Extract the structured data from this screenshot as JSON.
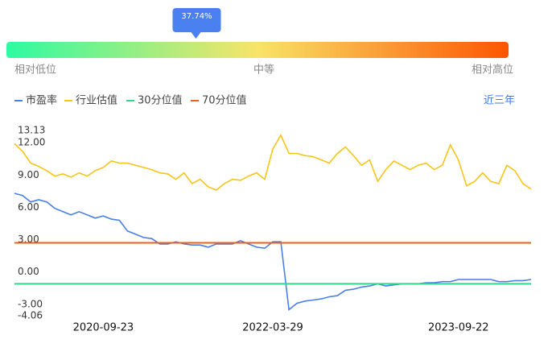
{
  "chart_data": [
    {
      "type": "gauge",
      "value": 37.74,
      "label": "37.74%",
      "low_label": "相对低位",
      "mid_label": "中等",
      "high_label": "相对高位",
      "colors": [
        "#2efaa2",
        "#f8e468",
        "#fd5502"
      ]
    },
    {
      "type": "line",
      "period_label": "近三年",
      "categories": [
        null,
        null,
        null,
        null,
        null,
        null,
        null,
        null,
        null,
        null,
        null,
        "2020-09-23",
        null,
        null,
        null,
        null,
        null,
        null,
        null,
        null,
        null,
        null,
        null,
        null,
        null,
        null,
        null,
        null,
        null,
        null,
        null,
        null,
        "2022-03-29",
        null,
        null,
        null,
        null,
        null,
        null,
        null,
        null,
        null,
        null,
        null,
        null,
        null,
        null,
        null,
        null,
        null,
        null,
        null,
        null,
        null,
        null,
        "2023-09-22",
        null,
        null,
        null,
        null,
        null,
        null,
        null,
        null,
        null
      ],
      "series": [
        {
          "name": "市盈率",
          "color": "#4a7fe8",
          "values": [
            7.3,
            7.1,
            6.5,
            6.7,
            6.5,
            5.9,
            5.6,
            5.3,
            5.6,
            5.3,
            5.0,
            5.2,
            4.9,
            4.8,
            3.8,
            3.5,
            3.2,
            3.1,
            2.6,
            2.6,
            2.8,
            2.6,
            2.5,
            2.5,
            2.3,
            2.6,
            2.6,
            2.6,
            2.9,
            2.6,
            2.3,
            2.2,
            2.8,
            2.8,
            -3.5,
            -2.9,
            -2.7,
            -2.6,
            -2.5,
            -2.3,
            -2.2,
            -1.7,
            -1.6,
            -1.4,
            -1.3,
            -1.1,
            -1.3,
            -1.2,
            -1.1,
            -1.1,
            -1.1,
            -1.0,
            -1.0,
            -0.9,
            -0.9,
            -0.7,
            -0.7,
            -0.7,
            -0.7,
            -0.7,
            -0.9,
            -0.9,
            -0.8,
            -0.8,
            -0.7
          ]
        },
        {
          "name": "行业估值",
          "color": "#f5c518",
          "values": [
            11.9,
            11.2,
            10.1,
            9.8,
            9.4,
            8.9,
            9.1,
            8.8,
            9.2,
            8.9,
            9.4,
            9.7,
            10.3,
            10.1,
            10.1,
            9.9,
            9.7,
            9.5,
            9.2,
            9.1,
            8.6,
            9.2,
            8.2,
            8.6,
            7.9,
            7.6,
            8.2,
            8.6,
            8.5,
            8.9,
            9.2,
            8.6,
            11.4,
            12.7,
            11.0,
            11.0,
            10.8,
            10.7,
            10.4,
            10.1,
            11.0,
            11.6,
            10.8,
            9.9,
            10.4,
            8.4,
            9.5,
            10.3,
            9.9,
            9.5,
            9.9,
            10.1,
            9.5,
            9.9,
            11.8,
            10.4,
            8.0,
            8.4,
            9.2,
            8.4,
            8.2,
            9.9,
            9.4,
            8.2,
            7.7
          ]
        }
      ],
      "reference_lines": [
        {
          "name": "30分位值",
          "color": "#2fd88a",
          "value": -1.1
        },
        {
          "name": "70分位值",
          "color": "#f06014",
          "value": 2.7
        }
      ],
      "ylim": [
        -4.06,
        13.13
      ],
      "yticks": [
        13.13,
        {
          "value": 12,
          "label": "12.00"
        },
        {
          "value": 9,
          "label": "9.00"
        },
        {
          "value": 6,
          "label": "6.00"
        },
        {
          "value": 3,
          "label": "3.00"
        },
        {
          "value": 0,
          "label": "0.00"
        },
        {
          "value": -3,
          "label": "-3.00"
        },
        -4.06
      ]
    }
  ]
}
